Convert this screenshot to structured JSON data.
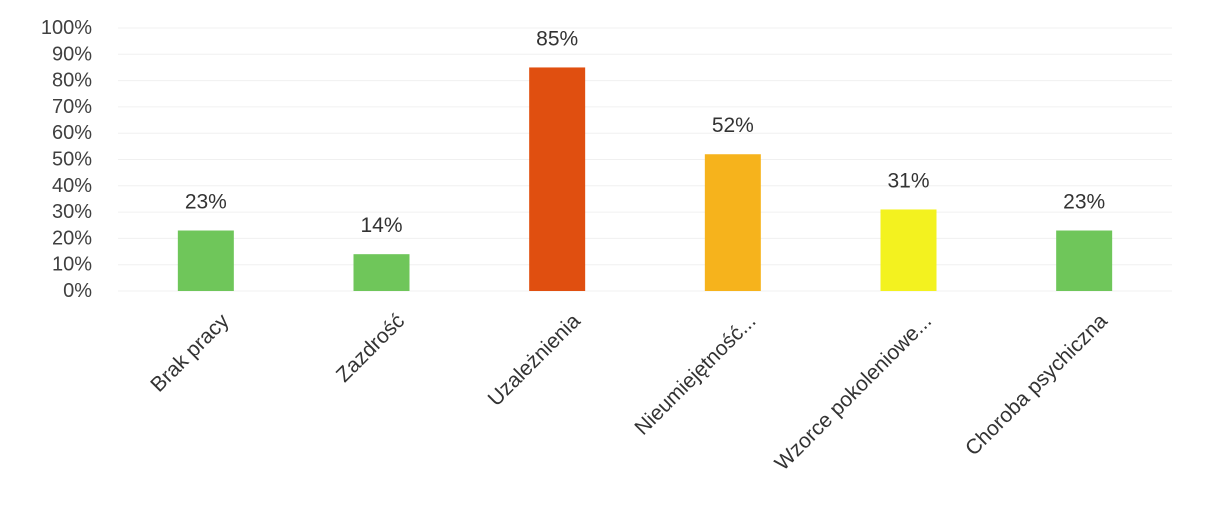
{
  "chart_data": {
    "type": "bar",
    "categories": [
      "Brak pracy",
      "Zazdrość",
      "Uzależnienia",
      "Nieumiejętność...",
      "Wzorce pokoleniowe...",
      "Choroba psychiczna"
    ],
    "values": [
      23,
      14,
      85,
      52,
      31,
      23
    ],
    "data_labels": [
      "23%",
      "14%",
      "85%",
      "52%",
      "31%",
      "23%"
    ],
    "colors": [
      "#6fc65a",
      "#6fc65a",
      "#e04f10",
      "#f6b31c",
      "#f3f21f",
      "#6fc65a"
    ],
    "yticks": [
      "0%",
      "10%",
      "20%",
      "30%",
      "40%",
      "50%",
      "60%",
      "70%",
      "80%",
      "90%",
      "100%"
    ],
    "ylim": [
      0,
      100
    ],
    "grid": true,
    "legend": "none"
  }
}
